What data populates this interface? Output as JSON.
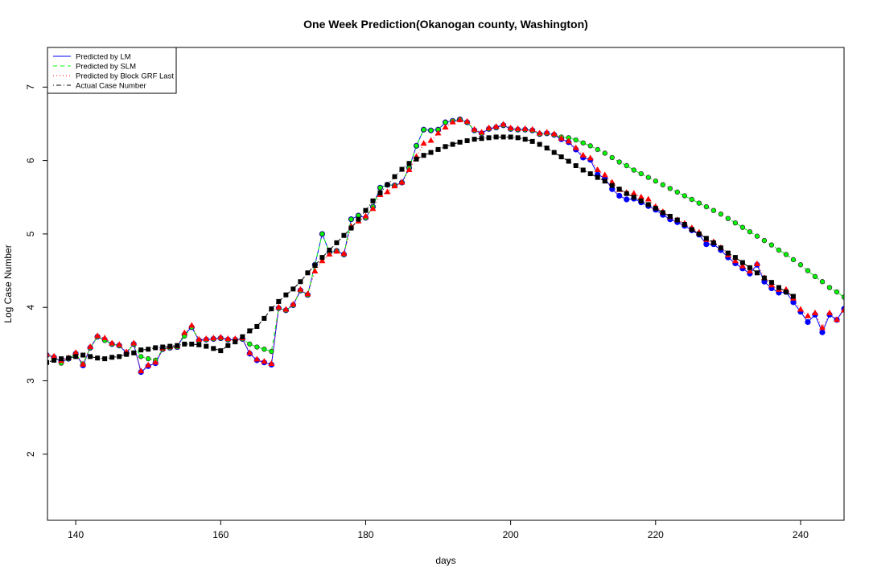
{
  "chart_data": {
    "type": "scatter-line",
    "title": "One Week Prediction(Okanogan county, Washington)",
    "x_label": "days",
    "y_label": "Log Case Number",
    "xlim": [
      136.1,
      246
    ],
    "ylim": [
      1.1,
      7.54
    ],
    "xticks": [
      140,
      160,
      180,
      200,
      220,
      240
    ],
    "yticks": [
      2,
      3,
      4,
      5,
      6,
      7
    ],
    "legend": "topleft",
    "x": [
      136,
      137,
      138,
      139,
      140,
      141,
      142,
      143,
      144,
      145,
      146,
      147,
      148,
      149,
      150,
      151,
      152,
      153,
      154,
      155,
      156,
      157,
      158,
      159,
      160,
      161,
      162,
      163,
      164,
      165,
      166,
      167,
      168,
      169,
      170,
      171,
      172,
      173,
      174,
      175,
      176,
      177,
      178,
      179,
      180,
      181,
      182,
      183,
      184,
      185,
      186,
      187,
      188,
      189,
      190,
      191,
      192,
      193,
      194,
      195,
      196,
      197,
      198,
      199,
      200,
      201,
      202,
      203,
      204,
      205,
      206,
      207,
      208,
      209,
      210,
      211,
      212,
      213,
      214,
      215,
      216,
      217,
      218,
      219,
      220,
      221,
      222,
      223,
      224,
      225,
      226,
      227,
      228,
      229,
      230,
      231,
      232,
      233,
      234,
      235,
      236,
      237,
      238,
      239,
      240,
      241,
      242,
      243,
      244,
      245,
      246
    ],
    "series": [
      {
        "name": "Predicted by LM",
        "color": "#0000ff",
        "marker": "circle",
        "dash": "solid",
        "values": [
          3.35,
          3.32,
          3.26,
          3.3,
          3.37,
          3.21,
          3.45,
          3.6,
          3.56,
          3.5,
          3.48,
          3.38,
          3.5,
          3.12,
          3.2,
          3.24,
          3.43,
          3.45,
          3.46,
          3.63,
          3.73,
          3.55,
          3.56,
          3.57,
          3.58,
          3.56,
          3.56,
          3.57,
          3.37,
          3.28,
          3.25,
          3.22,
          3.99,
          3.96,
          4.03,
          4.23,
          4.17,
          4.58,
          5.0,
          4.75,
          4.77,
          4.72,
          5.2,
          5.25,
          5.22,
          5.37,
          5.63,
          5.67,
          5.66,
          5.7,
          5.9,
          6.2,
          6.42,
          6.41,
          6.42,
          6.52,
          6.54,
          6.56,
          6.52,
          6.41,
          6.37,
          6.43,
          6.45,
          6.48,
          6.43,
          6.42,
          6.42,
          6.41,
          6.36,
          6.37,
          6.35,
          6.29,
          6.25,
          6.15,
          6.04,
          6.01,
          5.81,
          5.76,
          5.61,
          5.52,
          5.47,
          5.48,
          5.43,
          5.38,
          5.33,
          5.26,
          5.2,
          5.16,
          5.11,
          5.05,
          4.99,
          4.86,
          4.86,
          4.78,
          4.68,
          4.6,
          4.53,
          4.46,
          4.58,
          4.35,
          4.26,
          4.2,
          4.21,
          4.07,
          3.94,
          3.8,
          3.9,
          3.66,
          3.9,
          3.83,
          3.98
        ]
      },
      {
        "name": "Predicted by SLM",
        "color": "#00ff00",
        "marker": "circle-outline",
        "dash": "dashed",
        "values": [
          3.35,
          3.32,
          3.24,
          3.3,
          3.37,
          3.23,
          3.45,
          3.6,
          3.55,
          3.5,
          3.48,
          3.38,
          3.5,
          3.33,
          3.3,
          3.28,
          3.43,
          3.45,
          3.46,
          3.61,
          3.73,
          3.55,
          3.56,
          3.57,
          3.58,
          3.56,
          3.56,
          3.57,
          3.5,
          3.46,
          3.43,
          3.4,
          3.99,
          3.96,
          4.03,
          4.23,
          4.17,
          4.58,
          5.0,
          4.75,
          4.77,
          4.72,
          5.2,
          5.25,
          5.22,
          5.37,
          5.63,
          5.67,
          5.66,
          5.7,
          5.9,
          6.2,
          6.42,
          6.41,
          6.42,
          6.52,
          6.54,
          6.56,
          6.52,
          6.41,
          6.37,
          6.43,
          6.45,
          6.48,
          6.43,
          6.42,
          6.42,
          6.41,
          6.36,
          6.37,
          6.35,
          6.32,
          6.31,
          6.28,
          6.24,
          6.2,
          6.15,
          6.1,
          6.04,
          5.98,
          5.93,
          5.87,
          5.82,
          5.77,
          5.72,
          5.67,
          5.62,
          5.57,
          5.52,
          5.47,
          5.42,
          5.37,
          5.32,
          5.27,
          5.21,
          5.15,
          5.09,
          5.03,
          4.97,
          4.91,
          4.85,
          4.78,
          4.72,
          4.65,
          4.58,
          4.5,
          4.42,
          4.35,
          4.27,
          4.21,
          4.14
        ]
      },
      {
        "name": "Predicted by Block GRF Last",
        "color": "#ff0000",
        "marker": "triangle",
        "dash": "dotted",
        "values": [
          3.36,
          3.33,
          3.27,
          3.31,
          3.38,
          3.22,
          3.46,
          3.61,
          3.58,
          3.51,
          3.49,
          3.39,
          3.51,
          3.13,
          3.21,
          3.25,
          3.44,
          3.46,
          3.47,
          3.65,
          3.75,
          3.56,
          3.57,
          3.58,
          3.59,
          3.57,
          3.57,
          3.58,
          3.38,
          3.29,
          3.26,
          3.23,
          4.0,
          3.97,
          4.04,
          4.24,
          4.18,
          4.49,
          4.63,
          4.72,
          4.76,
          4.73,
          5.1,
          5.17,
          5.24,
          5.34,
          5.53,
          5.57,
          5.65,
          5.7,
          5.87,
          6.05,
          6.23,
          6.27,
          6.37,
          6.45,
          6.52,
          6.55,
          6.53,
          6.42,
          6.38,
          6.44,
          6.46,
          6.49,
          6.44,
          6.43,
          6.43,
          6.42,
          6.37,
          6.38,
          6.36,
          6.3,
          6.26,
          6.17,
          6.07,
          6.03,
          5.87,
          5.8,
          5.7,
          5.6,
          5.56,
          5.55,
          5.5,
          5.47,
          5.37,
          5.3,
          5.23,
          5.19,
          5.14,
          5.08,
          5.02,
          4.92,
          4.89,
          4.81,
          4.71,
          4.63,
          4.56,
          4.49,
          4.59,
          4.4,
          4.3,
          4.24,
          4.24,
          4.12,
          3.97,
          3.88,
          3.92,
          3.72,
          3.92,
          3.83,
          3.96
        ]
      },
      {
        "name": "Actual Case Number",
        "color": "#000000",
        "marker": "square",
        "dash": "dotdash",
        "values": [
          3.25,
          3.28,
          3.3,
          3.31,
          3.33,
          3.35,
          3.33,
          3.31,
          3.3,
          3.32,
          3.33,
          3.36,
          3.38,
          3.42,
          3.43,
          3.45,
          3.46,
          3.47,
          3.48,
          3.5,
          3.5,
          3.49,
          3.47,
          3.44,
          3.41,
          3.48,
          3.53,
          3.6,
          3.68,
          3.74,
          3.85,
          3.98,
          4.08,
          4.17,
          4.25,
          4.35,
          4.47,
          4.57,
          4.68,
          4.78,
          4.88,
          4.98,
          5.08,
          5.2,
          5.32,
          5.45,
          5.56,
          5.67,
          5.78,
          5.88,
          5.96,
          6.02,
          6.07,
          6.11,
          6.15,
          6.19,
          6.22,
          6.25,
          6.27,
          6.29,
          6.3,
          6.31,
          6.32,
          6.32,
          6.32,
          6.31,
          6.29,
          6.26,
          6.22,
          6.17,
          6.11,
          6.05,
          5.99,
          5.93,
          5.87,
          5.82,
          5.77,
          5.72,
          5.66,
          5.61,
          5.55,
          5.5,
          5.45,
          5.4,
          5.35,
          5.29,
          5.24,
          5.19,
          5.13,
          5.06,
          5.0,
          4.94,
          4.88,
          4.81,
          4.74,
          4.68,
          4.61,
          4.54,
          4.47,
          4.4,
          4.34,
          4.27,
          4.21,
          4.15,
          null,
          null,
          null,
          null,
          null,
          null,
          null
        ]
      }
    ]
  }
}
